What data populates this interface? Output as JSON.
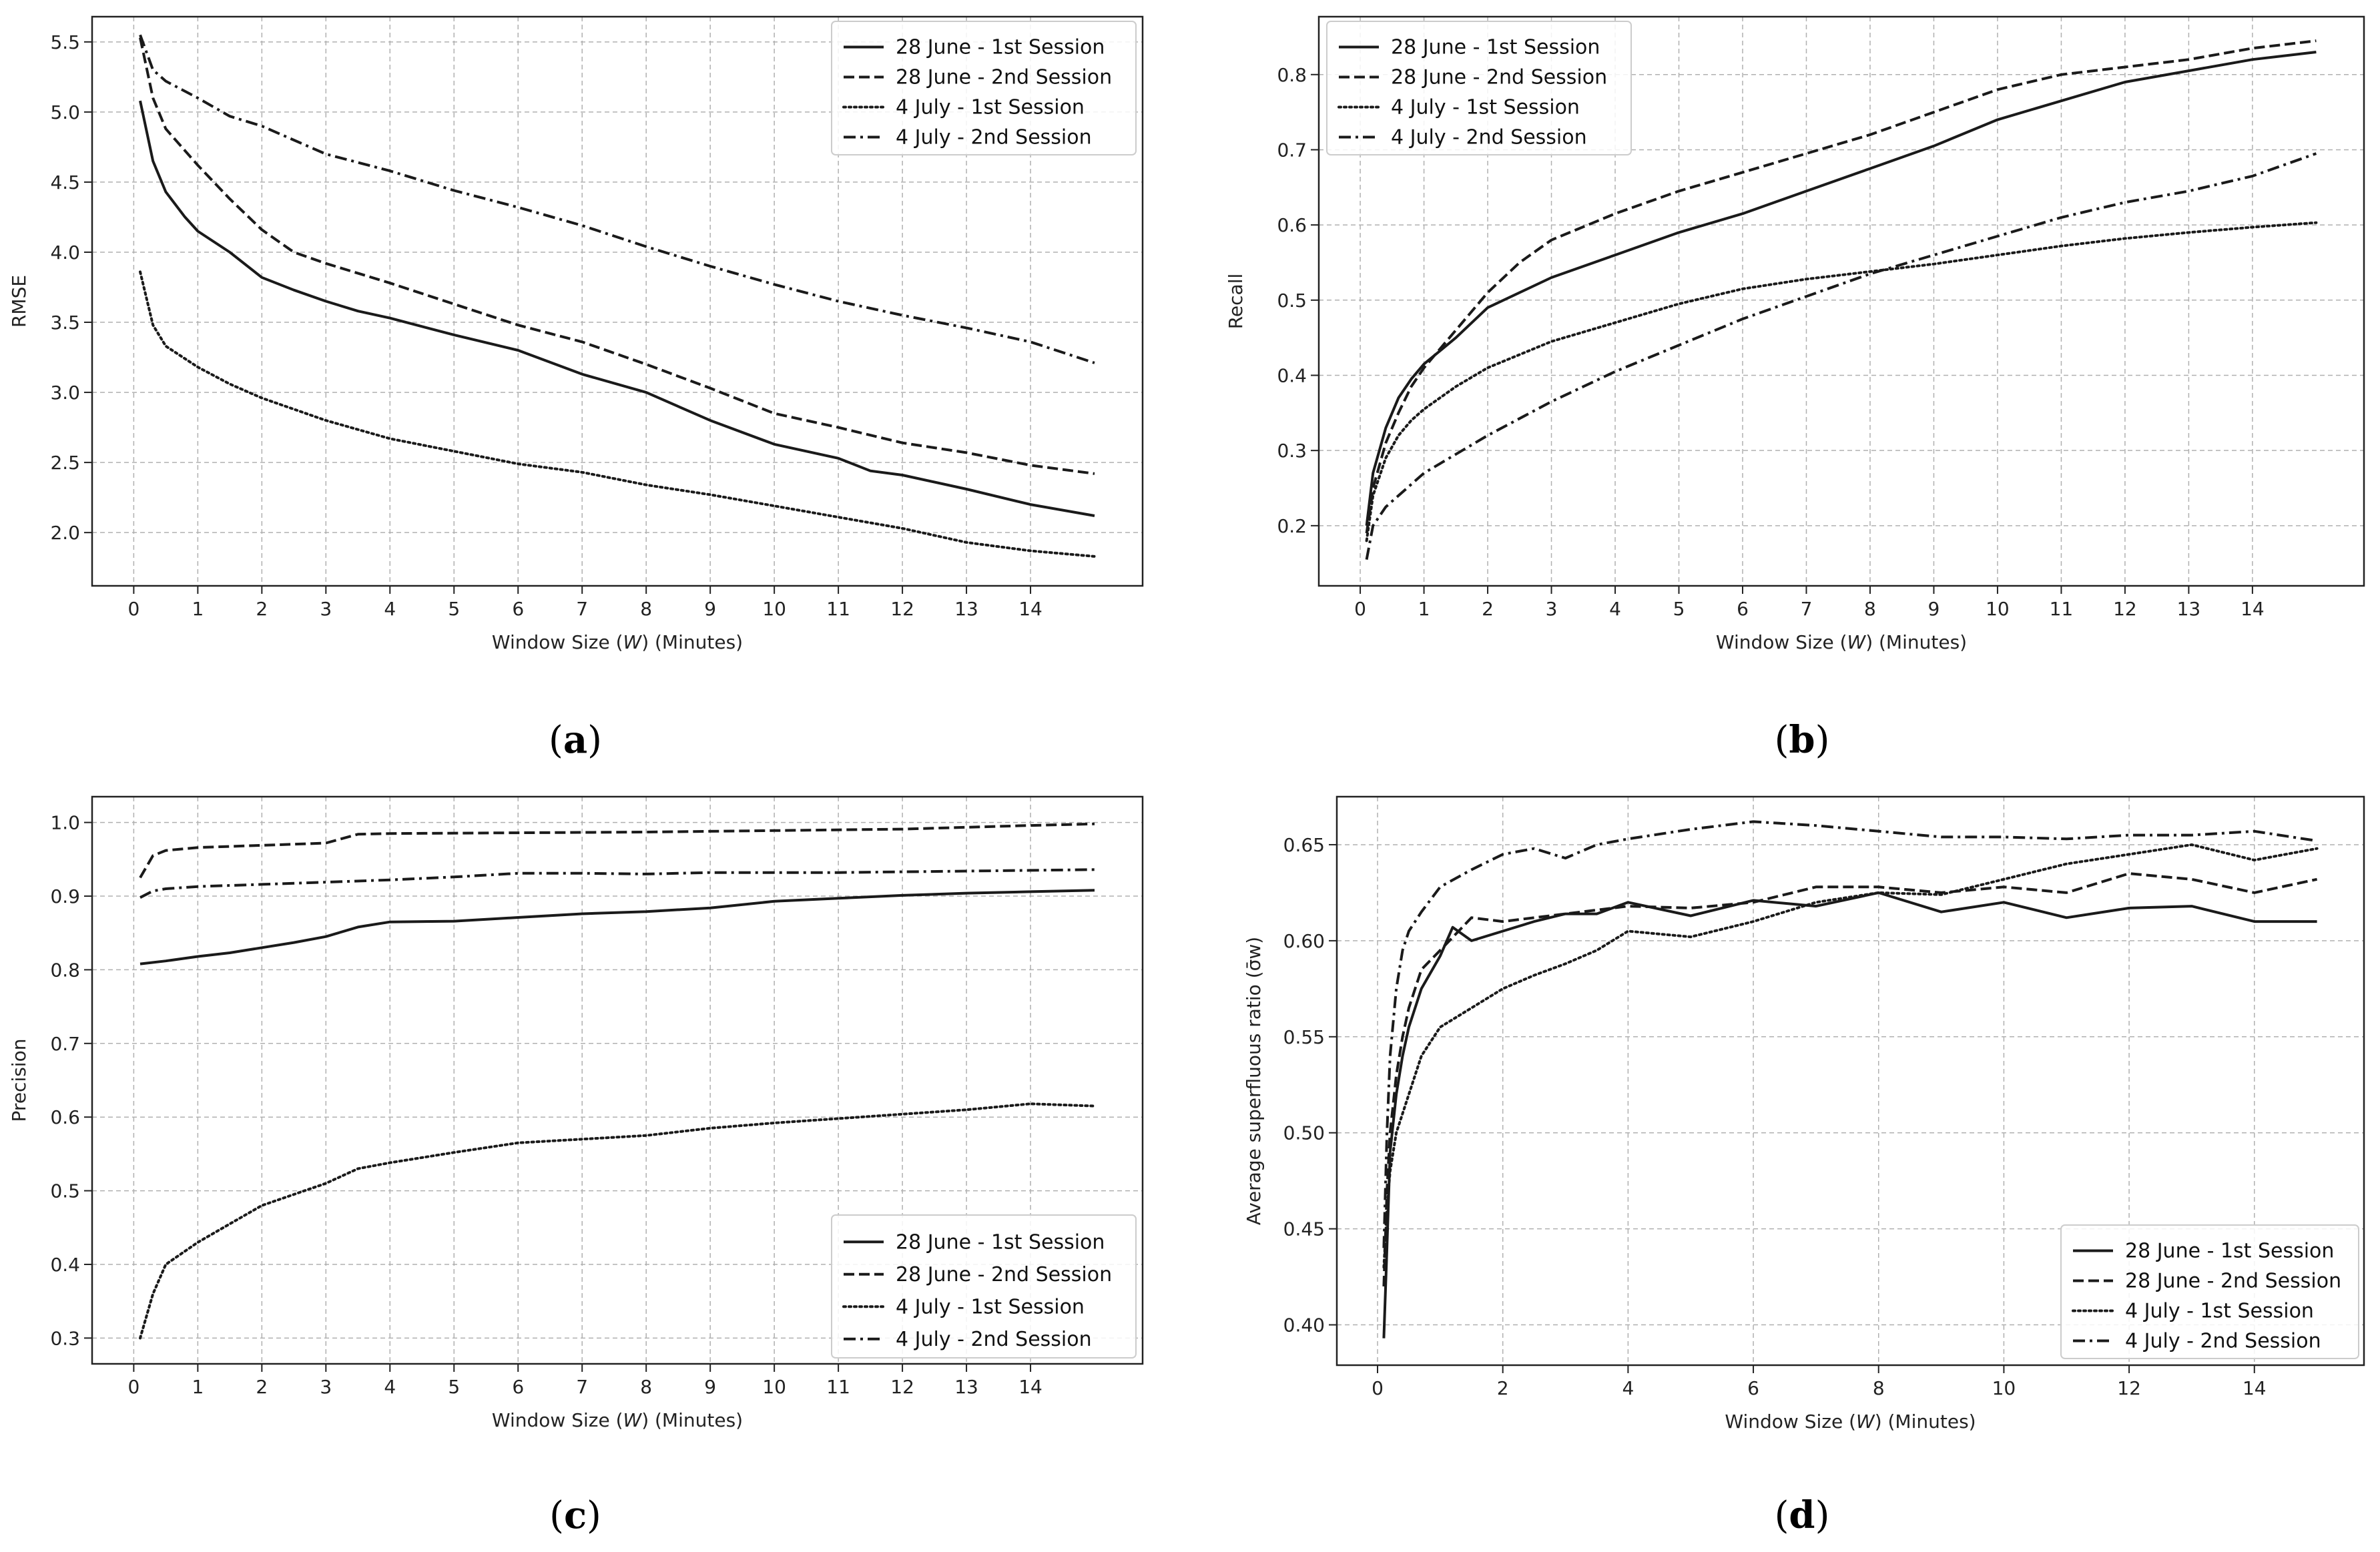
{
  "figure": {
    "captions": [
      "(a)",
      "(b)",
      "(c)",
      "(d)"
    ]
  },
  "styles": {
    "line_color": "#1a1a1a",
    "grid_color": "#b0b0b0",
    "dashes": {
      "solid": "",
      "dashed": "16,7",
      "dotted": "3,5",
      "dashdot": "18,7,4,7"
    }
  },
  "chart_data": [
    {
      "id": "a",
      "type": "line",
      "caption": "(a)",
      "xlabel_prefix": "Window Size (",
      "xlabel_var": "W",
      "xlabel_suffix": ") (Minutes)",
      "ylabel": "RMSE",
      "xlim": [
        -0.65,
        15.75
      ],
      "ylim": [
        1.62,
        5.68
      ],
      "xticks": [
        0,
        1,
        2,
        3,
        4,
        5,
        6,
        7,
        8,
        9,
        10,
        11,
        12,
        13,
        14
      ],
      "yticks": [
        2.0,
        2.5,
        3.0,
        3.5,
        4.0,
        4.5,
        5.0,
        5.5
      ],
      "ytick_labels": [
        "2.0",
        "2.5",
        "3.0",
        "3.5",
        "4.0",
        "4.5",
        "5.0",
        "5.5"
      ],
      "grid": true,
      "legend_position": "top-right",
      "series": [
        {
          "name": "28 June - 1st Session",
          "style": "solid",
          "x": [
            0.1,
            0.3,
            0.5,
            0.8,
            1,
            1.5,
            2,
            2.5,
            3,
            3.5,
            4,
            5,
            6,
            7,
            8,
            9,
            10,
            11,
            11.5,
            12,
            13,
            14,
            15
          ],
          "y": [
            5.08,
            4.65,
            4.43,
            4.25,
            4.15,
            4.0,
            3.82,
            3.73,
            3.65,
            3.58,
            3.53,
            3.41,
            3.3,
            3.13,
            3.0,
            2.8,
            2.63,
            2.53,
            2.44,
            2.41,
            2.31,
            2.2,
            2.12
          ]
        },
        {
          "name": "28 June - 2nd Session",
          "style": "dashed",
          "x": [
            0.1,
            0.3,
            0.5,
            1,
            1.5,
            2,
            2.5,
            3,
            4,
            5,
            6,
            7,
            8,
            9,
            10,
            11,
            12,
            13,
            14,
            15
          ],
          "y": [
            5.53,
            5.1,
            4.88,
            4.62,
            4.38,
            4.16,
            4.0,
            3.92,
            3.78,
            3.63,
            3.48,
            3.36,
            3.2,
            3.03,
            2.85,
            2.75,
            2.64,
            2.57,
            2.48,
            2.42
          ]
        },
        {
          "name": "4 July - 1st Session",
          "style": "dotted",
          "x": [
            0.1,
            0.3,
            0.5,
            1,
            1.5,
            2,
            3,
            4,
            5,
            6,
            7,
            8,
            9,
            10,
            11,
            12,
            13,
            14,
            15
          ],
          "y": [
            3.86,
            3.48,
            3.33,
            3.18,
            3.06,
            2.96,
            2.8,
            2.67,
            2.58,
            2.49,
            2.43,
            2.34,
            2.27,
            2.19,
            2.11,
            2.03,
            1.93,
            1.87,
            1.83
          ]
        },
        {
          "name": "4 July - 2nd Session",
          "style": "dashdot",
          "x": [
            0.1,
            0.3,
            0.5,
            1,
            1.5,
            2,
            3,
            4,
            5,
            6,
            7,
            8,
            9,
            10,
            11,
            12,
            13,
            14,
            15
          ],
          "y": [
            5.55,
            5.3,
            5.22,
            5.1,
            4.97,
            4.9,
            4.7,
            4.58,
            4.44,
            4.32,
            4.19,
            4.04,
            3.9,
            3.77,
            3.65,
            3.55,
            3.46,
            3.36,
            3.21
          ]
        }
      ]
    },
    {
      "id": "b",
      "type": "line",
      "caption": "(b)",
      "xlabel_prefix": "Window Size (",
      "xlabel_var": "W",
      "xlabel_suffix": ") (Minutes)",
      "ylabel": "Recall",
      "xlim": [
        -0.65,
        15.75
      ],
      "ylim": [
        0.12,
        0.877
      ],
      "xticks": [
        0,
        1,
        2,
        3,
        4,
        5,
        6,
        7,
        8,
        9,
        10,
        11,
        12,
        13,
        14
      ],
      "yticks": [
        0.2,
        0.3,
        0.4,
        0.5,
        0.6,
        0.7,
        0.8
      ],
      "ytick_labels": [
        "0.2",
        "0.3",
        "0.4",
        "0.5",
        "0.6",
        "0.7",
        "0.8"
      ],
      "grid": true,
      "legend_position": "top-left",
      "series": [
        {
          "name": "28 June - 1st Session",
          "style": "solid",
          "x": [
            0.1,
            0.2,
            0.4,
            0.6,
            0.8,
            1,
            1.5,
            2,
            3,
            4,
            5,
            6,
            7,
            8,
            9,
            10,
            11,
            12,
            13,
            14,
            15
          ],
          "y": [
            0.2,
            0.27,
            0.33,
            0.37,
            0.395,
            0.415,
            0.45,
            0.49,
            0.53,
            0.56,
            0.59,
            0.615,
            0.645,
            0.675,
            0.705,
            0.74,
            0.765,
            0.79,
            0.805,
            0.82,
            0.83
          ]
        },
        {
          "name": "28 June - 2nd Session",
          "style": "dashed",
          "x": [
            0.1,
            0.2,
            0.4,
            0.6,
            0.8,
            1,
            1.5,
            2,
            2.5,
            3,
            4,
            5,
            6,
            7,
            8,
            9,
            10,
            11,
            12,
            13,
            14,
            15
          ],
          "y": [
            0.19,
            0.25,
            0.31,
            0.35,
            0.385,
            0.41,
            0.46,
            0.51,
            0.55,
            0.58,
            0.615,
            0.645,
            0.67,
            0.695,
            0.72,
            0.75,
            0.78,
            0.8,
            0.81,
            0.82,
            0.835,
            0.845
          ]
        },
        {
          "name": "4 July - 1st Session",
          "style": "dotted",
          "x": [
            0.1,
            0.2,
            0.4,
            0.6,
            0.8,
            1,
            1.5,
            2,
            3,
            4,
            5,
            6,
            7,
            8,
            9,
            10,
            11,
            12,
            13,
            14,
            15
          ],
          "y": [
            0.18,
            0.24,
            0.29,
            0.32,
            0.34,
            0.355,
            0.385,
            0.41,
            0.445,
            0.47,
            0.495,
            0.515,
            0.528,
            0.538,
            0.548,
            0.56,
            0.572,
            0.582,
            0.59,
            0.597,
            0.603
          ]
        },
        {
          "name": "4 July - 2nd Session",
          "style": "dashdot",
          "x": [
            0.1,
            0.2,
            0.4,
            0.6,
            0.8,
            1,
            1.5,
            2,
            3,
            4,
            5,
            6,
            7,
            8,
            9,
            10,
            11,
            12,
            13,
            14,
            15
          ],
          "y": [
            0.155,
            0.2,
            0.225,
            0.24,
            0.255,
            0.27,
            0.295,
            0.32,
            0.365,
            0.405,
            0.44,
            0.475,
            0.505,
            0.535,
            0.56,
            0.585,
            0.61,
            0.63,
            0.645,
            0.665,
            0.695
          ]
        }
      ]
    },
    {
      "id": "c",
      "type": "line",
      "caption": "(c)",
      "xlabel_prefix": "Window Size (",
      "xlabel_var": "W",
      "xlabel_suffix": ") (Minutes)",
      "ylabel": "Precision",
      "xlim": [
        -0.65,
        15.75
      ],
      "ylim": [
        0.265,
        1.035
      ],
      "xticks": [
        0,
        1,
        2,
        3,
        4,
        5,
        6,
        7,
        8,
        9,
        10,
        11,
        12,
        13,
        14
      ],
      "yticks": [
        0.3,
        0.4,
        0.5,
        0.6,
        0.7,
        0.8,
        0.9,
        1.0
      ],
      "ytick_labels": [
        "0.3",
        "0.4",
        "0.5",
        "0.6",
        "0.7",
        "0.8",
        "0.9",
        "1.0"
      ],
      "grid": true,
      "legend_position": "bottom-right",
      "series": [
        {
          "name": "28 June - 1st Session",
          "style": "solid",
          "x": [
            0.1,
            0.5,
            1,
            1.5,
            2,
            2.5,
            3,
            3.5,
            4,
            5,
            6,
            7,
            8,
            9,
            10,
            11,
            12,
            13,
            14,
            15
          ],
          "y": [
            0.808,
            0.812,
            0.818,
            0.823,
            0.83,
            0.837,
            0.845,
            0.858,
            0.865,
            0.866,
            0.871,
            0.876,
            0.879,
            0.884,
            0.893,
            0.897,
            0.901,
            0.904,
            0.906,
            0.908
          ]
        },
        {
          "name": "28 June - 2nd Session",
          "style": "dashed",
          "x": [
            0.1,
            0.3,
            0.5,
            1,
            2,
            3,
            3.5,
            4,
            6,
            8,
            10,
            12,
            14,
            15
          ],
          "y": [
            0.925,
            0.955,
            0.962,
            0.966,
            0.969,
            0.972,
            0.984,
            0.985,
            0.986,
            0.987,
            0.989,
            0.991,
            0.996,
            0.998
          ]
        },
        {
          "name": "4 July - 1st Session",
          "style": "dotted",
          "x": [
            0.1,
            0.3,
            0.5,
            1,
            1.5,
            2,
            2.5,
            3,
            3.5,
            4,
            5,
            6,
            7,
            8,
            9,
            10,
            11,
            12,
            13,
            14,
            15
          ],
          "y": [
            0.3,
            0.36,
            0.4,
            0.43,
            0.455,
            0.48,
            0.495,
            0.51,
            0.53,
            0.538,
            0.552,
            0.565,
            0.57,
            0.575,
            0.585,
            0.592,
            0.598,
            0.604,
            0.61,
            0.618,
            0.615
          ]
        },
        {
          "name": "4 July - 2nd Session",
          "style": "dashdot",
          "x": [
            0.1,
            0.3,
            0.5,
            1,
            2,
            3,
            4,
            5,
            6,
            7,
            8,
            9,
            10,
            11,
            12,
            13,
            14,
            15
          ],
          "y": [
            0.898,
            0.907,
            0.91,
            0.913,
            0.916,
            0.919,
            0.922,
            0.926,
            0.931,
            0.931,
            0.93,
            0.932,
            0.932,
            0.932,
            0.933,
            0.934,
            0.935,
            0.936
          ]
        }
      ]
    },
    {
      "id": "d",
      "type": "line",
      "caption": "(d)",
      "xlabel_prefix": "Window Size (",
      "xlabel_var": "W",
      "xlabel_suffix": ") (Minutes)",
      "ylabel": "Average superfluous ratio (σ̄w)",
      "xlim": [
        -0.65,
        15.75
      ],
      "ylim": [
        0.379,
        0.675
      ],
      "xticks": [
        0,
        2,
        4,
        6,
        8,
        10,
        12,
        14
      ],
      "yticks": [
        0.4,
        0.45,
        0.5,
        0.55,
        0.6,
        0.65
      ],
      "ytick_labels": [
        "0.40",
        "0.45",
        "0.50",
        "0.55",
        "0.60",
        "0.65"
      ],
      "grid": true,
      "legend_position": "bottom-right",
      "series": [
        {
          "name": "28 June - 1st Session",
          "style": "solid",
          "x": [
            0.1,
            0.15,
            0.2,
            0.3,
            0.4,
            0.5,
            0.7,
            1,
            1.2,
            1.5,
            2,
            2.5,
            3,
            3.5,
            4,
            5,
            6,
            7,
            8,
            9,
            10,
            11,
            12,
            13,
            14,
            15
          ],
          "y": [
            0.393,
            0.44,
            0.49,
            0.52,
            0.54,
            0.555,
            0.575,
            0.592,
            0.607,
            0.6,
            0.605,
            0.61,
            0.614,
            0.614,
            0.62,
            0.613,
            0.621,
            0.618,
            0.625,
            0.615,
            0.62,
            0.612,
            0.617,
            0.618,
            0.61,
            0.61
          ]
        },
        {
          "name": "28 June - 2nd Session",
          "style": "dashed",
          "x": [
            0.1,
            0.15,
            0.2,
            0.3,
            0.4,
            0.5,
            0.7,
            1,
            1.5,
            2,
            3,
            4,
            5,
            6,
            7,
            8,
            9,
            10,
            11,
            12,
            13,
            14,
            15
          ],
          "y": [
            0.42,
            0.47,
            0.5,
            0.53,
            0.55,
            0.565,
            0.585,
            0.595,
            0.612,
            0.61,
            0.614,
            0.618,
            0.617,
            0.62,
            0.628,
            0.628,
            0.625,
            0.628,
            0.625,
            0.635,
            0.632,
            0.625,
            0.632
          ]
        },
        {
          "name": "4 July - 1st Session",
          "style": "dotted",
          "x": [
            0.1,
            0.15,
            0.2,
            0.3,
            0.5,
            0.7,
            1,
            1.5,
            2,
            2.5,
            3,
            3.5,
            4,
            5,
            6,
            7,
            8,
            9,
            10,
            11,
            12,
            13,
            14,
            15
          ],
          "y": [
            0.43,
            0.46,
            0.48,
            0.5,
            0.52,
            0.54,
            0.555,
            0.565,
            0.575,
            0.582,
            0.588,
            0.595,
            0.605,
            0.602,
            0.61,
            0.62,
            0.625,
            0.624,
            0.632,
            0.64,
            0.645,
            0.65,
            0.642,
            0.648
          ]
        },
        {
          "name": "4 July - 2nd Session",
          "style": "dashdot",
          "x": [
            0.1,
            0.15,
            0.2,
            0.3,
            0.4,
            0.5,
            0.7,
            1,
            1.5,
            2,
            2.5,
            3,
            3.5,
            4,
            5,
            6,
            7,
            8,
            9,
            10,
            11,
            12,
            13,
            14,
            15
          ],
          "y": [
            0.44,
            0.5,
            0.54,
            0.575,
            0.595,
            0.605,
            0.615,
            0.628,
            0.637,
            0.645,
            0.648,
            0.643,
            0.65,
            0.653,
            0.658,
            0.662,
            0.66,
            0.657,
            0.654,
            0.654,
            0.653,
            0.655,
            0.655,
            0.657,
            0.652
          ]
        }
      ]
    }
  ]
}
